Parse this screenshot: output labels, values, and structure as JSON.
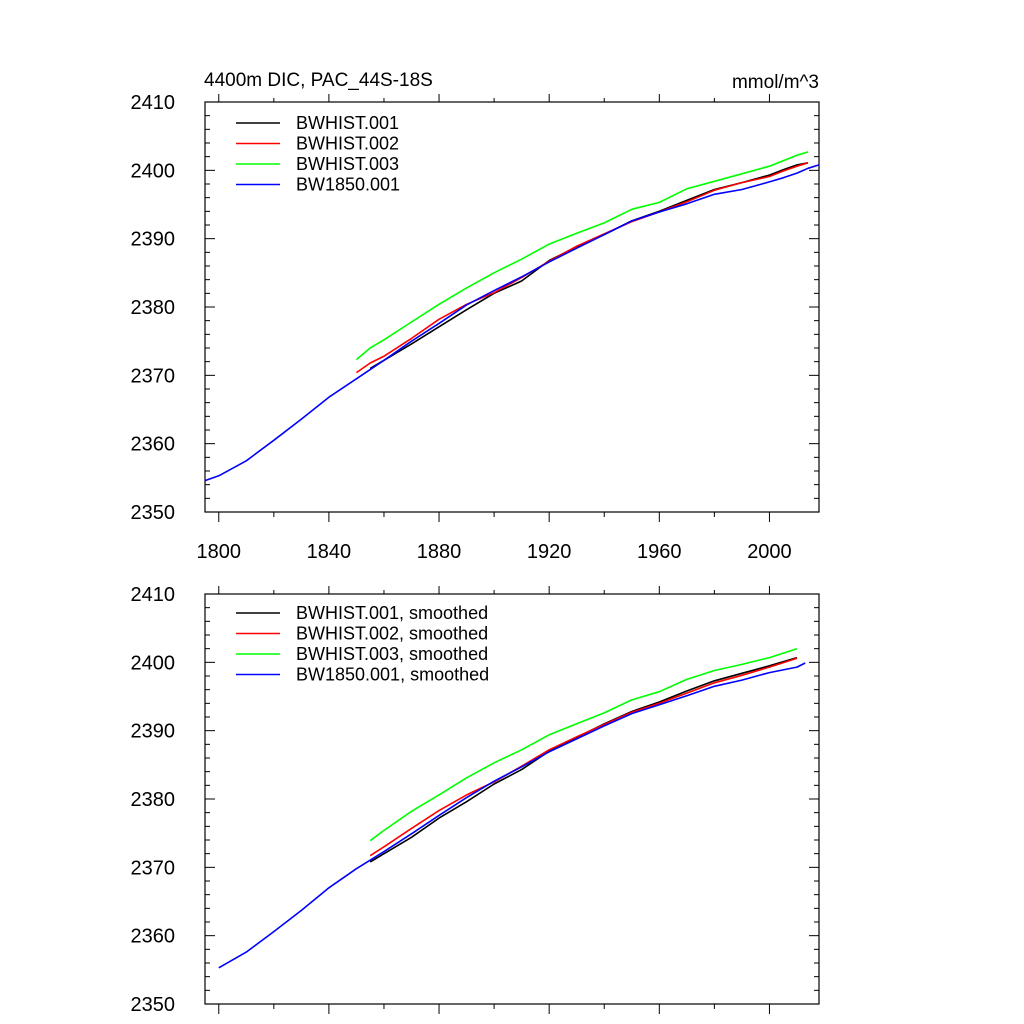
{
  "chart_data": [
    {
      "type": "line",
      "title": "4400m DIC, PAC_44S-18S",
      "units": "mmol/m^3",
      "xlabel": "",
      "ylabel": "",
      "xlim": [
        1795,
        2018
      ],
      "ylim": [
        2350,
        2410
      ],
      "xticks": [
        1800,
        1840,
        1880,
        1920,
        1960,
        2000
      ],
      "xtick_labels": [
        "1800",
        "1840",
        "1880",
        "1920",
        "1960",
        "2000"
      ],
      "yticks": [
        2350,
        2360,
        2370,
        2380,
        2390,
        2400,
        2410
      ],
      "ytick_labels": [
        "2350",
        "2360",
        "2370",
        "2380",
        "2390",
        "2400",
        "2410"
      ],
      "legend_position": "top-left",
      "grid": false,
      "series": [
        {
          "name": "BWHIST.001",
          "color": "#000000",
          "x": [
            1855,
            1860,
            1870,
            1880,
            1890,
            1900,
            1910,
            1920,
            1930,
            1940,
            1950,
            1960,
            1970,
            1980,
            1990,
            2000,
            2005,
            2010,
            2014
          ],
          "y": [
            2371,
            2372.2,
            2374.6,
            2377.1,
            2379.6,
            2382,
            2383.8,
            2386.8,
            2388.8,
            2390.6,
            2392.6,
            2394,
            2395.6,
            2397.2,
            2398.2,
            2399.3,
            2400.1,
            2400.8,
            2401.1
          ]
        },
        {
          "name": "BWHIST.002",
          "color": "#ff0000",
          "x": [
            1850,
            1855,
            1860,
            1870,
            1880,
            1890,
            1900,
            1910,
            1920,
            1930,
            1940,
            1950,
            1960,
            1970,
            1980,
            1990,
            2000,
            2005,
            2010,
            2014
          ],
          "y": [
            2370.4,
            2371.8,
            2372.8,
            2375.4,
            2378.2,
            2380.4,
            2382.1,
            2384.3,
            2386.7,
            2388.9,
            2390.7,
            2392.5,
            2393.9,
            2395.4,
            2397.1,
            2398.2,
            2399.1,
            2399.9,
            2400.6,
            2401.1
          ]
        },
        {
          "name": "BWHIST.003",
          "color": "#00ff00",
          "x": [
            1850,
            1855,
            1860,
            1870,
            1880,
            1890,
            1900,
            1910,
            1920,
            1930,
            1940,
            1950,
            1960,
            1970,
            1980,
            1990,
            2000,
            2005,
            2010,
            2014
          ],
          "y": [
            2372.3,
            2374,
            2375.2,
            2377.8,
            2380.4,
            2382.8,
            2385,
            2387,
            2389.2,
            2390.8,
            2392.3,
            2394.3,
            2395.3,
            2397.3,
            2398.4,
            2399.5,
            2400.6,
            2401.4,
            2402.2,
            2402.7
          ]
        },
        {
          "name": "BW1850.001",
          "color": "#0000ff",
          "x": [
            1795,
            1800,
            1810,
            1820,
            1830,
            1840,
            1850,
            1860,
            1870,
            1880,
            1890,
            1900,
            1910,
            1920,
            1930,
            1940,
            1950,
            1960,
            1970,
            1980,
            1990,
            2000,
            2005,
            2010,
            2014,
            2018
          ],
          "y": [
            2354.6,
            2355.3,
            2357.5,
            2360.5,
            2363.6,
            2366.8,
            2369.5,
            2372.2,
            2375,
            2377.6,
            2380.3,
            2382.4,
            2384.4,
            2386.6,
            2388.6,
            2390.6,
            2392.6,
            2393.9,
            2395.1,
            2396.5,
            2397.2,
            2398.3,
            2398.9,
            2399.6,
            2400.3,
            2400.8
          ]
        }
      ]
    },
    {
      "type": "line",
      "title": "",
      "xlabel": "",
      "ylabel": "",
      "xlim": [
        1795,
        2018
      ],
      "ylim": [
        2350,
        2410
      ],
      "xticks": [
        1800,
        1840,
        1880,
        1920,
        1960,
        2000
      ],
      "yticks": [
        2350,
        2360,
        2370,
        2380,
        2390,
        2400,
        2410
      ],
      "ytick_labels": [
        "2350",
        "2360",
        "2370",
        "2380",
        "2390",
        "2400",
        "2410"
      ],
      "legend_position": "top-left",
      "grid": false,
      "series": [
        {
          "name": "BWHIST.001, smoothed",
          "color": "#000000",
          "x": [
            1855,
            1860,
            1870,
            1880,
            1890,
            1900,
            1910,
            1920,
            1930,
            1940,
            1950,
            1960,
            1970,
            1980,
            1990,
            2000,
            2010
          ],
          "y": [
            2370.8,
            2372,
            2374.4,
            2377.2,
            2379.6,
            2382.2,
            2384.3,
            2387,
            2389,
            2391,
            2392.8,
            2394.2,
            2395.8,
            2397.3,
            2398.4,
            2399.5,
            2400.7
          ]
        },
        {
          "name": "BWHIST.002, smoothed",
          "color": "#ff0000",
          "x": [
            1855,
            1860,
            1870,
            1880,
            1890,
            1900,
            1910,
            1920,
            1930,
            1940,
            1950,
            1960,
            1970,
            1980,
            1990,
            2000,
            2010
          ],
          "y": [
            2371.7,
            2373,
            2375.7,
            2378.3,
            2380.6,
            2382.5,
            2384.8,
            2387.2,
            2389.1,
            2390.9,
            2392.7,
            2394,
            2395.5,
            2397,
            2398.1,
            2399.3,
            2400.6
          ]
        },
        {
          "name": "BWHIST.003, smoothed",
          "color": "#00ff00",
          "x": [
            1855,
            1860,
            1870,
            1880,
            1890,
            1900,
            1910,
            1920,
            1930,
            1940,
            1950,
            1960,
            1970,
            1980,
            1990,
            2000,
            2010
          ],
          "y": [
            2373.9,
            2375.4,
            2378.2,
            2380.6,
            2383.1,
            2385.3,
            2387.2,
            2389.4,
            2391,
            2392.6,
            2394.5,
            2395.7,
            2397.5,
            2398.8,
            2399.7,
            2400.7,
            2402
          ]
        },
        {
          "name": "BW1850.001, smoothed",
          "color": "#0000ff",
          "x": [
            1800,
            1810,
            1820,
            1830,
            1840,
            1850,
            1860,
            1870,
            1880,
            1890,
            1900,
            1910,
            1920,
            1930,
            1940,
            1950,
            1960,
            1970,
            1980,
            1990,
            2000,
            2010,
            2013
          ],
          "y": [
            2355.3,
            2357.6,
            2360.6,
            2363.7,
            2367,
            2369.8,
            2372.3,
            2374.9,
            2377.6,
            2380.2,
            2382.6,
            2384.7,
            2386.9,
            2388.8,
            2390.7,
            2392.5,
            2393.8,
            2395.1,
            2396.5,
            2397.4,
            2398.5,
            2399.3,
            2399.9
          ]
        }
      ]
    }
  ]
}
